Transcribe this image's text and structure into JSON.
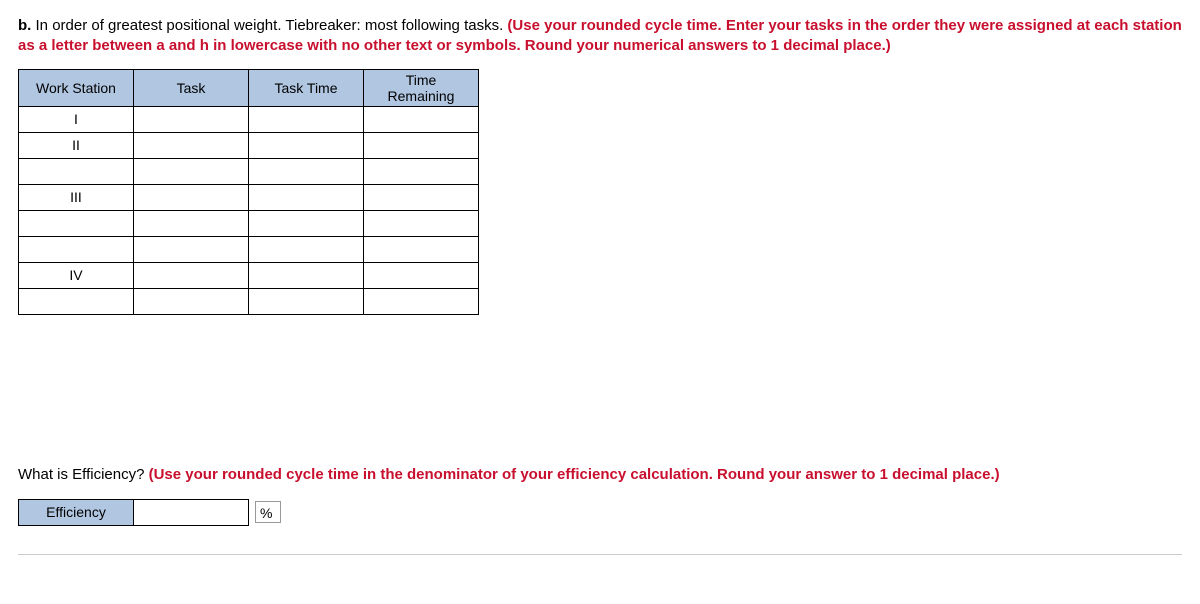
{
  "question_b": {
    "label": "b.",
    "plain": " In order of greatest positional weight. Tiebreaker: most following tasks. ",
    "red": "(Use your rounded cycle time. Enter your tasks in the order they were assigned at each station as a letter between a and h in lowercase with no other text or symbols. Round your numerical answers to 1 decimal place.)"
  },
  "table": {
    "headers": {
      "work_station": "Work Station",
      "task": "Task",
      "task_time": "Task Time",
      "time_remaining_l1": "Time",
      "time_remaining_l2": "Remaining"
    },
    "rows": [
      {
        "ws": "I",
        "task": "",
        "task_time": "",
        "time_remaining": ""
      },
      {
        "ws": "II",
        "task": "",
        "task_time": "",
        "time_remaining": ""
      },
      {
        "ws": "",
        "task": "",
        "task_time": "",
        "time_remaining": ""
      },
      {
        "ws": "III",
        "task": "",
        "task_time": "",
        "time_remaining": ""
      },
      {
        "ws": "",
        "task": "",
        "task_time": "",
        "time_remaining": ""
      },
      {
        "ws": "",
        "task": "",
        "task_time": "",
        "time_remaining": ""
      },
      {
        "ws": "IV",
        "task": "",
        "task_time": "",
        "time_remaining": ""
      },
      {
        "ws": "",
        "task": "",
        "task_time": "",
        "time_remaining": ""
      }
    ]
  },
  "efficiency_q": {
    "plain": "What is Efficiency? ",
    "red": "(Use your rounded cycle time in the denominator of your efficiency calculation. Round your answer to 1 decimal place.)"
  },
  "efficiency_row": {
    "label": "Efficiency",
    "value": "",
    "unit": "%"
  },
  "colors": {
    "header_bg": "#b0c6e1",
    "emphasis": "#c8102e",
    "border": "#000000"
  }
}
